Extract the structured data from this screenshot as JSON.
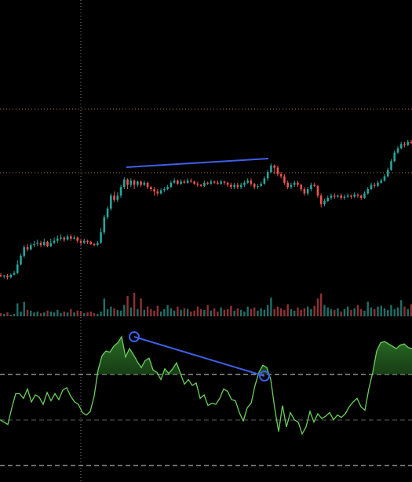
{
  "theme": {
    "background": "#000000",
    "up": "#26a69a",
    "down": "#ef5350",
    "vol_up": "#1f6f68",
    "vol_down": "#8f3235",
    "indicator": "#6ccf5e",
    "trendline": "#3f5fe6",
    "guide": "#8a8a8a",
    "level": "#b07a3a"
  },
  "chart_data": [
    {
      "type": "candlestick",
      "candles": [
        [
          0.6,
          0.55,
          0.7,
          0.5
        ],
        [
          0.55,
          0.58,
          0.62,
          0.45
        ],
        [
          0.58,
          0.5,
          0.65,
          0.4
        ],
        [
          0.5,
          0.62,
          0.68,
          0.45
        ],
        [
          0.62,
          0.7,
          0.8,
          0.58
        ],
        [
          0.7,
          1.1,
          1.3,
          0.65
        ],
        [
          1.1,
          1.5,
          1.6,
          1.05
        ],
        [
          1.5,
          1.9,
          2.0,
          1.4
        ],
        [
          1.9,
          1.8,
          2.05,
          1.7
        ],
        [
          1.8,
          2.0,
          2.1,
          1.75
        ],
        [
          2.0,
          2.05,
          2.2,
          1.9
        ],
        [
          2.05,
          2.1,
          2.25,
          1.95
        ],
        [
          2.1,
          2.0,
          2.2,
          1.9
        ],
        [
          2.0,
          2.15,
          2.3,
          1.95
        ],
        [
          2.15,
          1.95,
          2.2,
          1.9
        ],
        [
          1.95,
          2.1,
          2.3,
          1.9
        ],
        [
          2.1,
          2.2,
          2.35,
          2.05
        ],
        [
          2.2,
          2.3,
          2.45,
          2.1
        ],
        [
          2.3,
          2.35,
          2.5,
          2.2
        ],
        [
          2.35,
          2.25,
          2.4,
          2.15
        ],
        [
          2.25,
          2.4,
          2.5,
          2.2
        ],
        [
          2.4,
          2.3,
          2.5,
          2.2
        ],
        [
          2.3,
          2.35,
          2.45,
          2.25
        ],
        [
          2.35,
          2.2,
          2.4,
          2.1
        ],
        [
          2.2,
          2.1,
          2.3,
          2.0
        ],
        [
          2.1,
          2.2,
          2.3,
          2.05
        ],
        [
          2.2,
          2.15,
          2.25,
          2.05
        ],
        [
          2.15,
          2.05,
          2.2,
          2.0
        ],
        [
          2.05,
          2.0,
          2.1,
          1.95
        ],
        [
          2.0,
          2.1,
          2.2,
          1.95
        ],
        [
          2.1,
          2.6,
          2.8,
          2.05
        ],
        [
          2.6,
          3.3,
          3.4,
          2.5
        ],
        [
          3.3,
          3.7,
          3.8,
          3.2
        ],
        [
          3.7,
          4.3,
          4.4,
          3.6
        ],
        [
          4.3,
          4.1,
          4.5,
          4.0
        ],
        [
          4.1,
          4.3,
          4.45,
          4.0
        ],
        [
          4.3,
          4.7,
          4.8,
          4.2
        ],
        [
          4.7,
          5.05,
          5.15,
          4.6
        ],
        [
          5.05,
          4.8,
          5.1,
          4.6
        ],
        [
          4.8,
          5.0,
          5.1,
          4.7
        ],
        [
          5.0,
          4.8,
          5.05,
          4.6
        ],
        [
          4.8,
          4.95,
          5.0,
          4.7
        ],
        [
          4.95,
          4.8,
          5.0,
          4.7
        ],
        [
          4.8,
          4.9,
          5.0,
          4.75
        ],
        [
          4.9,
          4.7,
          4.95,
          4.6
        ],
        [
          4.7,
          4.6,
          4.75,
          4.5
        ],
        [
          4.6,
          4.5,
          4.7,
          4.3
        ],
        [
          4.5,
          4.4,
          4.6,
          4.3
        ],
        [
          4.4,
          4.55,
          4.65,
          4.35
        ],
        [
          4.55,
          4.6,
          4.7,
          4.45
        ],
        [
          4.6,
          4.7,
          4.8,
          4.55
        ],
        [
          4.7,
          4.9,
          5.0,
          4.65
        ],
        [
          4.9,
          5.0,
          5.1,
          4.85
        ],
        [
          5.0,
          4.85,
          5.05,
          4.8
        ],
        [
          4.85,
          4.95,
          5.05,
          4.8
        ],
        [
          4.95,
          4.9,
          5.05,
          4.85
        ],
        [
          4.9,
          5.0,
          5.1,
          4.85
        ],
        [
          5.0,
          4.95,
          5.1,
          4.9
        ],
        [
          4.95,
          4.85,
          5.0,
          4.8
        ],
        [
          4.85,
          4.8,
          4.95,
          4.7
        ],
        [
          4.8,
          4.75,
          4.85,
          4.7
        ],
        [
          4.75,
          4.9,
          5.0,
          4.7
        ],
        [
          4.9,
          4.85,
          4.95,
          4.8
        ],
        [
          4.85,
          4.95,
          5.05,
          4.8
        ],
        [
          4.95,
          4.9,
          5.0,
          4.85
        ],
        [
          4.9,
          4.85,
          5.0,
          4.8
        ],
        [
          4.85,
          4.95,
          5.05,
          4.8
        ],
        [
          4.95,
          4.9,
          5.0,
          4.8
        ],
        [
          4.9,
          4.8,
          4.95,
          4.7
        ],
        [
          4.8,
          4.7,
          4.9,
          4.6
        ],
        [
          4.7,
          4.8,
          4.9,
          4.6
        ],
        [
          4.8,
          4.7,
          4.9,
          4.6
        ],
        [
          4.7,
          4.8,
          4.9,
          4.6
        ],
        [
          4.8,
          4.9,
          5.0,
          4.7
        ],
        [
          4.9,
          5.0,
          5.1,
          4.85
        ],
        [
          5.0,
          4.85,
          5.1,
          4.75
        ],
        [
          4.85,
          4.7,
          4.9,
          4.6
        ],
        [
          4.7,
          4.75,
          4.85,
          4.6
        ],
        [
          4.75,
          4.85,
          4.95,
          4.7
        ],
        [
          4.85,
          5.1,
          5.2,
          4.8
        ],
        [
          5.1,
          5.4,
          5.5,
          5.0
        ],
        [
          5.4,
          5.7,
          5.8,
          5.35
        ],
        [
          5.7,
          5.6,
          5.75,
          5.3
        ],
        [
          5.6,
          5.3,
          5.7,
          5.2
        ],
        [
          5.3,
          5.2,
          5.4,
          5.1
        ],
        [
          5.2,
          4.9,
          5.3,
          4.8
        ],
        [
          4.9,
          4.7,
          5.0,
          4.6
        ],
        [
          4.7,
          4.8,
          4.9,
          4.6
        ],
        [
          4.8,
          4.9,
          5.0,
          4.7
        ],
        [
          4.9,
          4.8,
          5.0,
          4.7
        ],
        [
          4.8,
          4.6,
          4.85,
          4.5
        ],
        [
          4.6,
          4.4,
          4.7,
          4.3
        ],
        [
          4.4,
          4.6,
          4.7,
          4.3
        ],
        [
          4.6,
          4.8,
          4.9,
          4.5
        ],
        [
          4.8,
          4.75,
          4.9,
          4.7
        ],
        [
          4.75,
          4.3,
          4.8,
          4.2
        ],
        [
          4.3,
          3.9,
          4.4,
          3.75
        ],
        [
          3.9,
          4.05,
          4.15,
          3.8
        ],
        [
          4.05,
          4.2,
          4.3,
          4.0
        ],
        [
          4.2,
          4.3,
          4.4,
          4.1
        ],
        [
          4.3,
          4.25,
          4.4,
          4.15
        ],
        [
          4.25,
          4.3,
          4.35,
          4.2
        ],
        [
          4.3,
          4.2,
          4.4,
          4.1
        ],
        [
          4.2,
          4.25,
          4.35,
          4.1
        ],
        [
          4.25,
          4.3,
          4.4,
          4.2
        ],
        [
          4.3,
          4.25,
          4.35,
          4.15
        ],
        [
          4.25,
          4.35,
          4.45,
          4.2
        ],
        [
          4.35,
          4.3,
          4.4,
          4.2
        ],
        [
          4.3,
          4.2,
          4.35,
          4.1
        ],
        [
          4.2,
          4.4,
          4.5,
          4.15
        ],
        [
          4.4,
          4.6,
          4.7,
          4.35
        ],
        [
          4.6,
          4.8,
          4.9,
          4.55
        ],
        [
          4.8,
          4.75,
          4.9,
          4.65
        ],
        [
          4.75,
          4.9,
          5.0,
          4.7
        ],
        [
          4.9,
          5.0,
          5.1,
          4.85
        ],
        [
          5.0,
          5.2,
          5.3,
          4.95
        ],
        [
          5.2,
          5.5,
          5.6,
          5.15
        ],
        [
          5.5,
          5.9,
          6.0,
          5.45
        ],
        [
          5.9,
          6.3,
          6.4,
          5.85
        ],
        [
          6.3,
          6.5,
          6.6,
          6.25
        ],
        [
          6.5,
          6.7,
          6.8,
          6.45
        ],
        [
          6.7,
          6.65,
          6.8,
          6.55
        ],
        [
          6.65,
          6.8,
          6.9,
          6.6
        ],
        [
          6.8,
          6.75,
          6.9,
          6.7
        ]
      ],
      "volumes": [
        4,
        3,
        5,
        2,
        3,
        16,
        6,
        18,
        8,
        7,
        5,
        6,
        4,
        5,
        7,
        6,
        5,
        8,
        4,
        6,
        5,
        9,
        5,
        7,
        6,
        4,
        5,
        6,
        4,
        3,
        6,
        22,
        9,
        12,
        10,
        8,
        7,
        14,
        25,
        11,
        29,
        9,
        22,
        8,
        12,
        9,
        7,
        13,
        6,
        9,
        14,
        10,
        7,
        12,
        8,
        10,
        9,
        6,
        7,
        12,
        9,
        8,
        14,
        7,
        10,
        6,
        11,
        8,
        9,
        13,
        7,
        10,
        8,
        6,
        12,
        9,
        11,
        7,
        10,
        8,
        14,
        23,
        9,
        12,
        10,
        8,
        15,
        9,
        7,
        11,
        8,
        10,
        12,
        9,
        13,
        22,
        28,
        14,
        11,
        9,
        8,
        10,
        6,
        9,
        12,
        8,
        10,
        14,
        9,
        7,
        18,
        11,
        9,
        12,
        13,
        10,
        8,
        14,
        9,
        11,
        20,
        12,
        9,
        15,
        11,
        10
      ]
    },
    {
      "type": "area",
      "values": [
        30,
        28,
        26,
        40,
        52,
        52,
        48,
        56,
        45,
        51,
        49,
        43,
        53,
        46,
        52,
        47,
        55,
        57,
        50,
        45,
        43,
        36,
        34,
        37,
        50,
        72,
        84,
        88,
        87,
        92,
        95,
        100,
        83,
        90,
        85,
        79,
        74,
        80,
        82,
        72,
        70,
        64,
        73,
        69,
        73,
        78,
        69,
        60,
        64,
        59,
        61,
        48,
        51,
        42,
        44,
        43,
        48,
        56,
        54,
        47,
        46,
        36,
        29,
        40,
        44,
        59,
        70,
        76,
        74,
        64,
        40,
        20,
        42,
        24,
        36,
        30,
        28,
        18,
        24,
        37,
        28,
        35,
        31,
        33,
        36,
        30,
        34,
        32,
        35,
        41,
        45,
        48,
        41,
        38,
        56,
        70,
        88,
        95,
        96,
        94,
        92,
        90,
        93,
        94,
        91,
        90
      ],
      "ylim": [
        0,
        100
      ]
    }
  ]
}
